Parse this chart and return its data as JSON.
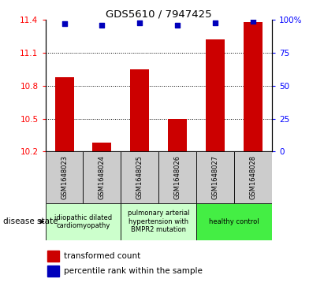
{
  "title": "GDS5610 / 7947425",
  "samples": [
    "GSM1648023",
    "GSM1648024",
    "GSM1648025",
    "GSM1648026",
    "GSM1648027",
    "GSM1648028"
  ],
  "transformed_counts": [
    10.88,
    10.28,
    10.95,
    10.5,
    11.22,
    11.38
  ],
  "percentile_ranks": [
    97,
    96,
    98,
    96,
    98,
    99
  ],
  "ylim_left": [
    10.2,
    11.4
  ],
  "ylim_right": [
    0,
    100
  ],
  "yticks_left": [
    10.2,
    10.5,
    10.8,
    11.1,
    11.4
  ],
  "yticks_right": [
    0,
    25,
    50,
    75,
    100
  ],
  "ytick_labels_right": [
    "0",
    "25",
    "50",
    "75",
    "100%"
  ],
  "bar_color": "#cc0000",
  "dot_color": "#0000bb",
  "group_labels": [
    "idiopathic dilated\ncardiomyopathy",
    "pulmonary arterial\nhypertension with\nBMPR2 mutation",
    "healthy control"
  ],
  "group_ranges": [
    [
      0,
      2
    ],
    [
      2,
      4
    ],
    [
      4,
      6
    ]
  ],
  "group_colors": [
    "#ccffcc",
    "#ccffcc",
    "#44ee44"
  ],
  "legend_bar_label": "transformed count",
  "legend_dot_label": "percentile rank within the sample",
  "disease_state_label": "disease state",
  "bg_color": "#ffffff",
  "sample_bg_color": "#cccccc",
  "bar_width": 0.5
}
